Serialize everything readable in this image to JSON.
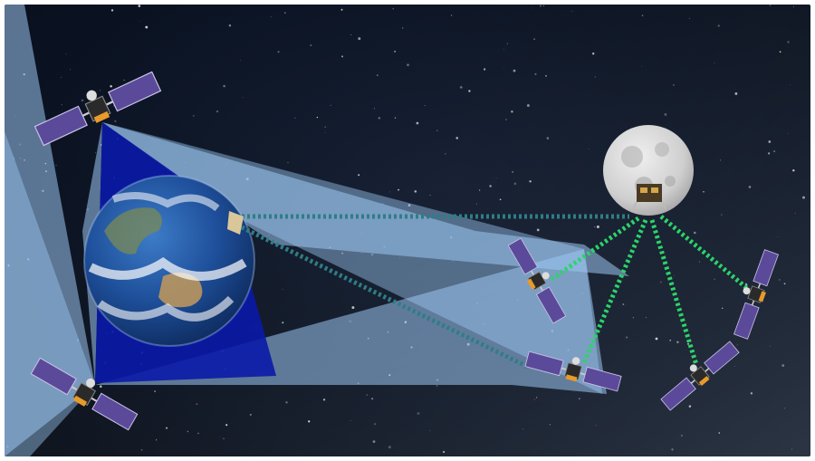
{
  "image": {
    "colors": {
      "space": "#0b1320",
      "beam": "#9cc7f2",
      "beam_dark": "#0a1aa8",
      "optical_link": "#2f7d86",
      "lunar_link": "#2bd46a",
      "solar_panel": "#5b4a9a",
      "earth_ocean": "#1e4f9a",
      "moon": "#d4d4d4"
    },
    "elements": [
      {
        "name": "earth",
        "icon": "earth-icon"
      },
      {
        "name": "moon",
        "icon": "moon-icon"
      },
      {
        "name": "lunar-lander",
        "icon": "lander-icon"
      },
      {
        "name": "relay-satellite-upper-left",
        "icon": "satellite-icon"
      },
      {
        "name": "relay-satellite-lower-left",
        "icon": "satellite-icon"
      },
      {
        "name": "ground-terminal-earth",
        "icon": "terminal-icon"
      },
      {
        "name": "lunar-orbiter-1",
        "icon": "satellite-icon"
      },
      {
        "name": "lunar-orbiter-2",
        "icon": "satellite-icon"
      },
      {
        "name": "lunar-orbiter-3",
        "icon": "satellite-icon"
      },
      {
        "name": "lunar-orbiter-4",
        "icon": "satellite-icon"
      }
    ]
  }
}
